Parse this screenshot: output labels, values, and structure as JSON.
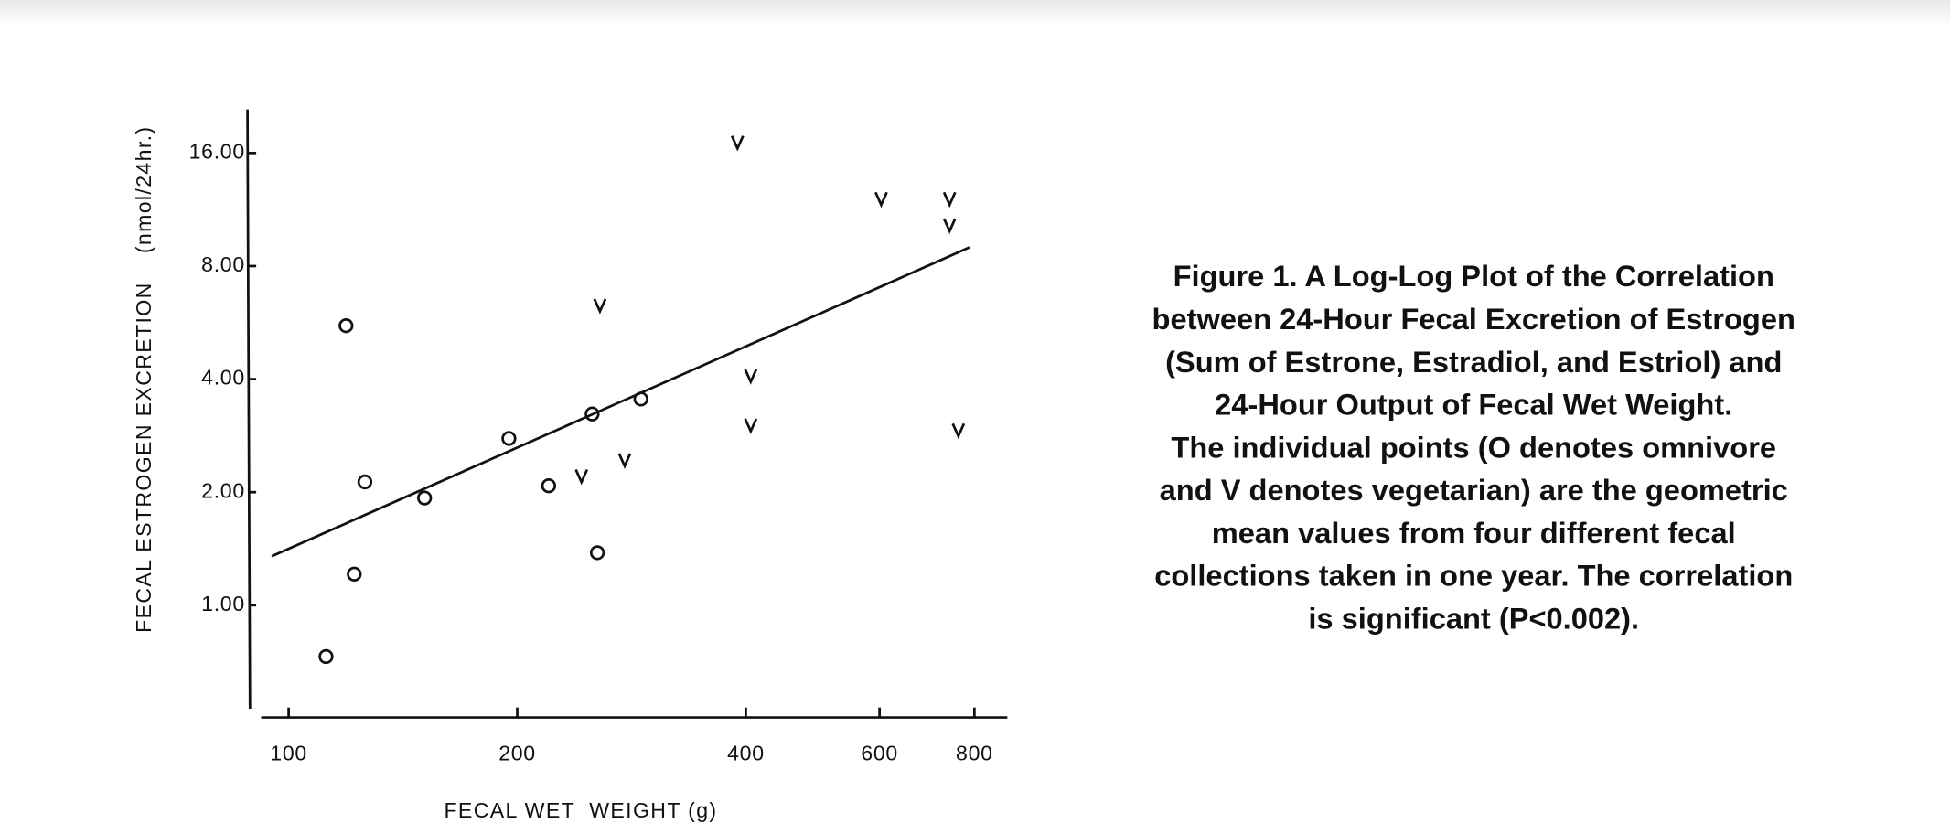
{
  "chart_data": {
    "type": "scatter",
    "x_label": "FECAL WET  WEIGHT (g)",
    "y_label": "FECAL ESTROGEN EXCRETION    (nmol/24hr.)",
    "xscale": "log",
    "yscale": "log",
    "xlim": [
      92,
      884
    ],
    "ylim": [
      0.53,
      20.9
    ],
    "xticks": [
      100,
      200,
      400,
      600,
      800
    ],
    "yticks": [
      {
        "value": 1,
        "label": "1.00"
      },
      {
        "value": 2,
        "label": "2.00"
      },
      {
        "value": 4,
        "label": "4.00"
      },
      {
        "value": 8,
        "label": "8.00"
      },
      {
        "value": 16,
        "label": "16.00"
      }
    ],
    "series": [
      {
        "marker": "circle",
        "color": "#111111",
        "x": [
          119,
          126,
          151,
          195,
          220,
          251,
          291,
          255,
          122,
          112
        ],
        "values": [
          5.55,
          2.13,
          1.93,
          2.78,
          2.08,
          3.23,
          3.54,
          1.38,
          1.21,
          0.73
        ]
      },
      {
        "marker": "v",
        "color": "#111111",
        "x": [
          390,
          603,
          742,
          742,
          257,
          406,
          406,
          762,
          243,
          277
        ],
        "values": [
          17.1,
          12.1,
          12.1,
          10.3,
          6.3,
          4.09,
          3.02,
          2.93,
          2.21,
          2.44
        ]
      }
    ],
    "trend_line": {
      "color": "#111111",
      "x": [
        95,
        788
      ],
      "y": [
        1.35,
        8.97
      ]
    },
    "caption": [
      "Figure 1. A Log-Log Plot of the Correlation",
      "between 24-Hour Fecal Excretion of Estrogen",
      "(Sum of Estrone, Estradiol, and Estriol) and",
      "24-Hour Output of Fecal Wet Weight.",
      "The individual points (O denotes omnivore",
      "and V denotes vegetarian) are the geometric",
      "mean values from four different fecal",
      "collections taken in one year. The correlation",
      "is significant (P<0.002)."
    ]
  }
}
